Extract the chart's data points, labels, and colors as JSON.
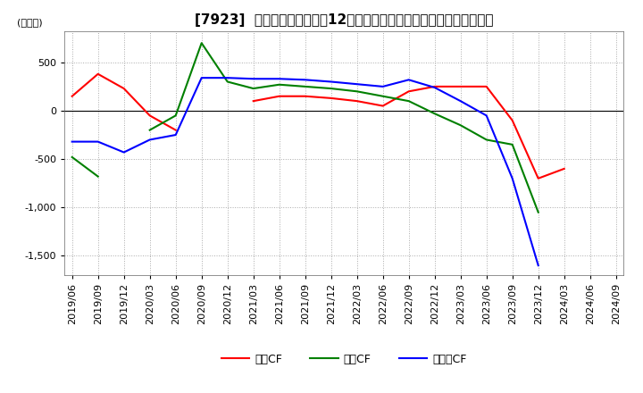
{
  "title": "[7923]  キャッシュフローの12か月移動合計の対前年同期増減額の推移",
  "ylabel": "(百万円)",
  "ylim": [
    -1700,
    820
  ],
  "yticks": [
    500,
    0,
    -500,
    -1000,
    -1500
  ],
  "legend_labels": [
    "営業CF",
    "投資CF",
    "フリーCF"
  ],
  "line_colors": [
    "#ff0000",
    "#008000",
    "#0000ff"
  ],
  "dates": [
    "2019/06",
    "2019/09",
    "2019/12",
    "2020/03",
    "2020/06",
    "2020/09",
    "2020/12",
    "2021/03",
    "2021/06",
    "2021/09",
    "2021/12",
    "2022/03",
    "2022/06",
    "2022/09",
    "2022/12",
    "2023/03",
    "2023/06",
    "2023/09",
    "2023/12",
    "2024/03",
    "2024/06",
    "2024/09"
  ],
  "営業CF": [
    150,
    380,
    230,
    -50,
    -200,
    null,
    null,
    100,
    150,
    150,
    130,
    100,
    50,
    200,
    250,
    250,
    250,
    -100,
    -700,
    -600,
    null,
    null
  ],
  "投資CF": [
    -480,
    -680,
    null,
    -200,
    -50,
    700,
    300,
    230,
    270,
    250,
    230,
    200,
    150,
    100,
    -30,
    -150,
    -300,
    -350,
    -1050,
    null,
    null,
    null
  ],
  "フリーCF": [
    -320,
    -320,
    -430,
    -300,
    -250,
    340,
    340,
    330,
    330,
    320,
    300,
    275,
    250,
    320,
    240,
    100,
    -50,
    -700,
    -1600,
    null,
    null,
    null
  ],
  "background_color": "#ffffff",
  "grid_color": "#aaaaaa",
  "title_fontsize": 11,
  "label_fontsize": 8
}
